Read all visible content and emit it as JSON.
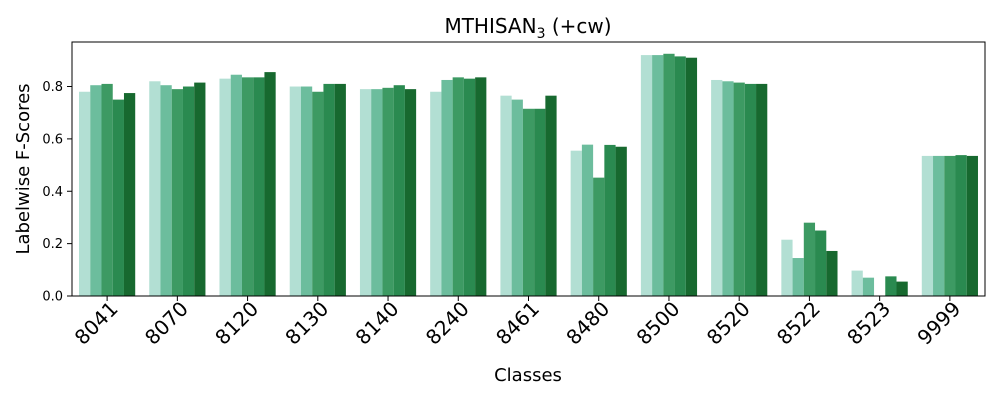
{
  "chart_data": {
    "type": "bar",
    "title": "MTHISAN",
    "title_subscript": "3",
    "title_suffix": " (+cw)",
    "xlabel": "Classes",
    "ylabel": "Labelwise F-Scores",
    "ylim": [
      0,
      0.97
    ],
    "yticks": [
      "0.0",
      "0.2",
      "0.4",
      "0.6",
      "0.8"
    ],
    "ytick_values": [
      0.0,
      0.2,
      0.4,
      0.6,
      0.8
    ],
    "grid": false,
    "legend": "none",
    "categories": [
      "8041",
      "8070",
      "8120",
      "8130",
      "8140",
      "8240",
      "8461",
      "8480",
      "8500",
      "8520",
      "8522",
      "8523",
      "9999"
    ],
    "series_colors": [
      "#e5f5f9",
      "#b2dfd3",
      "#6cbd9d",
      "#3d9a63",
      "#2a8a50",
      "#17692f"
    ],
    "series": [
      {
        "values": [
          0.78,
          0.82,
          0.83,
          0.8,
          0.79,
          0.78,
          0.765,
          0.555,
          0.92,
          0.825,
          0.215,
          0.097,
          0.535
        ]
      },
      {
        "values": [
          0.805,
          0.805,
          0.845,
          0.8,
          0.79,
          0.825,
          0.75,
          0.578,
          0.92,
          0.82,
          0.145,
          0.07,
          0.535
        ]
      },
      {
        "values": [
          0.81,
          0.79,
          0.835,
          0.78,
          0.795,
          0.835,
          0.715,
          0.452,
          0.925,
          0.815,
          0.28,
          0.0,
          0.535
        ]
      },
      {
        "values": [
          0.75,
          0.8,
          0.835,
          0.81,
          0.805,
          0.83,
          0.715,
          0.577,
          0.915,
          0.81,
          0.25,
          0.075,
          0.538
        ]
      },
      {
        "values": [
          0.775,
          0.815,
          0.855,
          0.81,
          0.79,
          0.835,
          0.765,
          0.57,
          0.91,
          0.81,
          0.172,
          0.055,
          0.535
        ]
      }
    ]
  }
}
